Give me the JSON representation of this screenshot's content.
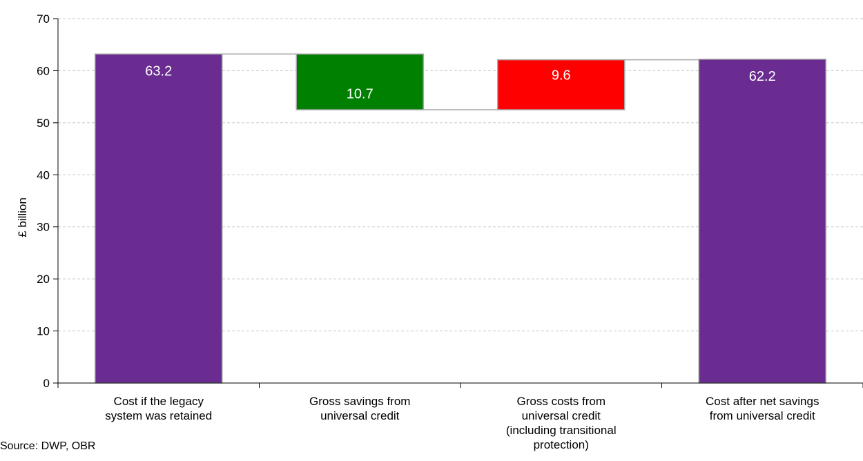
{
  "chart_data": {
    "type": "bar",
    "subtype": "waterfall",
    "categories": [
      [
        "Cost if the legacy",
        "system was retained"
      ],
      [
        "Gross savings from",
        "universal credit"
      ],
      [
        "Gross costs from",
        "universal credit",
        "(including transitional",
        "protection)"
      ],
      [
        "Cost after net savings",
        "from universal credit"
      ]
    ],
    "bars": [
      {
        "bottom": 0,
        "top": 63.2,
        "label": "63.2",
        "color": "#6a2c91"
      },
      {
        "bottom": 52.5,
        "top": 63.2,
        "label": "10.7",
        "color": "#008000"
      },
      {
        "bottom": 52.5,
        "top": 62.1,
        "label": "9.6",
        "color": "#ff0000"
      },
      {
        "bottom": 0,
        "top": 62.2,
        "label": "62.2",
        "color": "#6a2c91"
      }
    ],
    "ylabel": "£ billion",
    "ylim": [
      0,
      70
    ],
    "yticks": [
      0,
      10,
      20,
      30,
      40,
      50,
      60,
      70
    ],
    "grid": true,
    "legend": "none"
  },
  "source": "Source: DWP, OBR"
}
